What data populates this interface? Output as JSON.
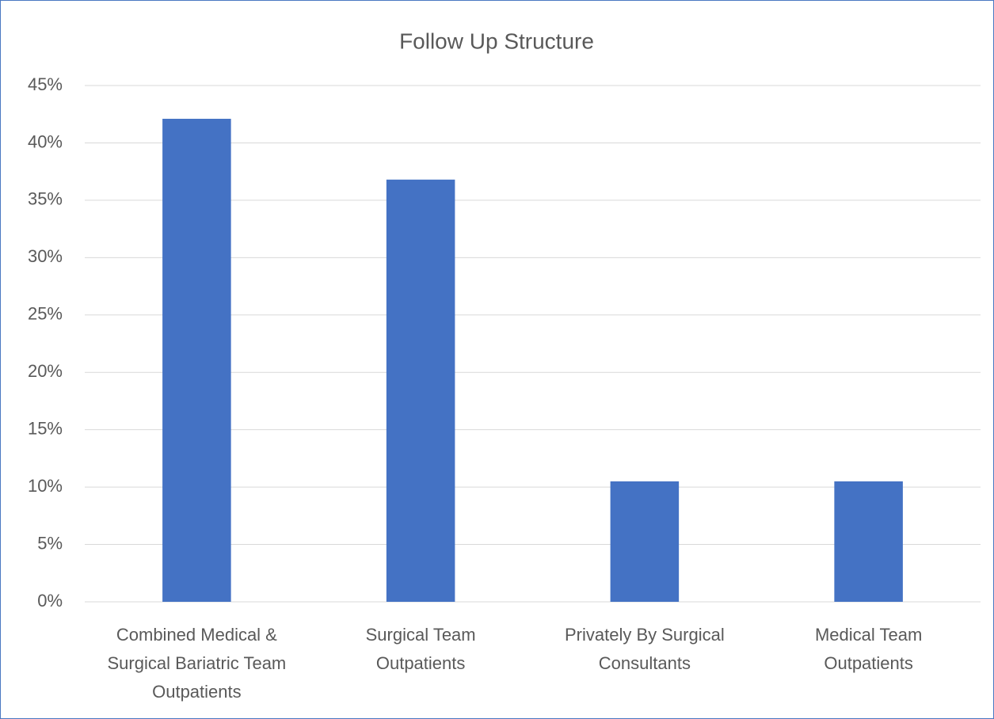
{
  "chart_data": {
    "type": "bar",
    "title": "Follow Up Structure",
    "categories": [
      "Combined Medical & Surgical Bariatric Team Outpatients",
      "Surgical Team Outpatients",
      "Privately By Surgical Consultants",
      "Medical Team Outpatients"
    ],
    "values": [
      42.1,
      36.8,
      10.5,
      10.5
    ],
    "color": "#4472c4",
    "ylim": [
      0,
      45
    ],
    "yticks": [
      {
        "value": 0,
        "label": "0%"
      },
      {
        "value": 5,
        "label": "5%"
      },
      {
        "value": 10,
        "label": "10%"
      },
      {
        "value": 15,
        "label": "15%"
      },
      {
        "value": 20,
        "label": "20%"
      },
      {
        "value": 25,
        "label": "25%"
      },
      {
        "value": 30,
        "label": "30%"
      },
      {
        "value": 35,
        "label": "35%"
      },
      {
        "value": 40,
        "label": "40%"
      },
      {
        "value": 45,
        "label": "45%"
      }
    ],
    "grid": true
  }
}
